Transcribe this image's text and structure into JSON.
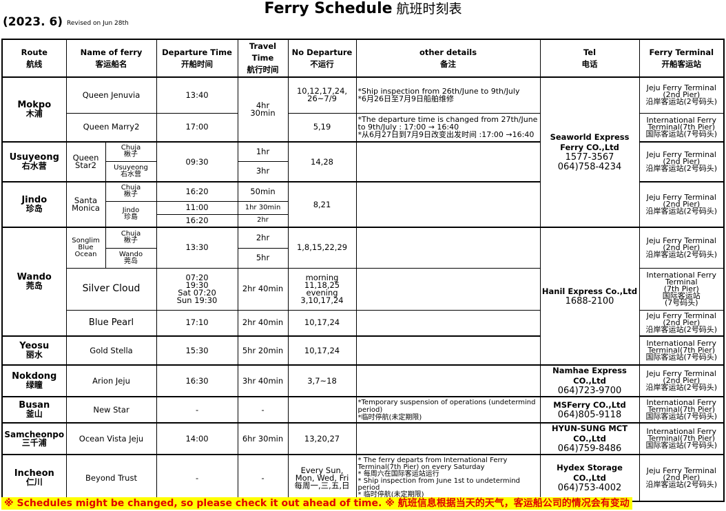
{
  "header": {
    "title": "Ferry Schedule",
    "title_cn": "航班时刻表",
    "year": "(2023. 6)",
    "revised": "Revised on Jun 28th"
  },
  "columns": [
    "Route\n航线",
    "Name of ferry\n客运船名",
    "Departure Time\n开船时间",
    "Travel\nTime\n航行时间",
    "No Departure\n不运行",
    "other details\n备注",
    "Tel\n电话",
    "Ferry Terminal\n开船客运站"
  ],
  "terminals": {
    "jeju": "Jeju Ferry Terminal\n(2nd Pier)\n沿岸客运站(2号码头)",
    "intl": "International Ferry\nTerminal(7th Pier)\n国际客运站(7号码头)",
    "intl2": "International Ferry\nTerminal\n(7th Pier)\n国际客运站\n(7号码头)"
  },
  "companies": {
    "seaworld": {
      "name": "Seaworld Express\nFerry CO.,Ltd",
      "phone": "1577-3567\n064)758-4234"
    },
    "hanil": {
      "name": "Hanil Express Co.,Ltd",
      "phone": "1688-2100"
    },
    "namhae": {
      "name": "Namhae Express CO.,Ltd",
      "phone": "064)723-9700"
    },
    "msferry": {
      "name": "MSFerry CO.,Ltd",
      "phone": "064)805-9118"
    },
    "hyunsung": {
      "name": "HYUN-SUNG MCT CO.,Ltd",
      "phone": "064)759-8486"
    },
    "hydex": {
      "name": "Hydex Storage CO.,Ltd",
      "phone": "064)753-4002"
    }
  },
  "routes": {
    "mokpo": {
      "en": "Mokpo",
      "cn": "木浦",
      "ferries": [
        {
          "name": "Queen Jenuvia",
          "dep": "13:40",
          "travel": "4hr\n30min",
          "nodep": "10,12,17,24,\n26~7/9",
          "note": "*Ship inspection from 26th/June to 9th/July\n*6月26日至7月9日船舶维修"
        },
        {
          "name": "Queen Marry2",
          "dep": "17:00",
          "nodep": "5,19",
          "note": "*The departure time is changed from 27th/June to 9th/July : 17:00 → 16:40\n*从6月27日到7月9日改变出发时间 :17:00 →16:40"
        }
      ]
    },
    "usuyeong": {
      "en": "Usuyeong",
      "cn": "右水营",
      "ferry": "Queen\nStar2",
      "dest": [
        "Chuja\n楸子",
        "Usuyeong\n右水营"
      ],
      "dep": "09:30",
      "travel": [
        "1hr",
        "3hr"
      ],
      "nodep": "14,28"
    },
    "jindo": {
      "en": "Jindo",
      "cn": "珍岛",
      "ferry": "Santa\nMonica",
      "dest": [
        "Chuja\n楸子",
        "Jindo\n珍島"
      ],
      "dep": [
        "16:20",
        "11:00",
        "16:20"
      ],
      "travel": [
        "50min",
        "1hr 30min",
        "2hr"
      ],
      "nodep": "8,21"
    },
    "wando": {
      "en": "Wando",
      "cn": "莞岛",
      "ferry": "Songlim\nBlue\nOcean",
      "dest": [
        "Chuja\n楸子",
        "Wando\n莞岛"
      ],
      "dep": "13:30",
      "travel": [
        "2hr",
        "5hr"
      ],
      "nodep": "1,8,15,22,29",
      "silver": {
        "name": "Silver Cloud",
        "dep": "07:20\n19:30\nSat 07:20\nSun 19:30",
        "travel": "2hr 40min",
        "nodep": "morning\n11,18,25\nevening\n3,10,17,24"
      },
      "blue": {
        "name": "Blue Pearl",
        "dep": "17:10",
        "travel": "2hr 40min",
        "nodep": "10,17,24"
      }
    },
    "yeosu": {
      "en": "Yeosu",
      "cn": "丽水",
      "ferry": "Gold Stella",
      "dep": "15:30",
      "travel": "5hr 20min",
      "nodep": "10,17,24"
    },
    "nokdong": {
      "en": "Nokdong",
      "cn": "绿瞳",
      "ferry": "Arion Jeju",
      "dep": "16:30",
      "travel": "3hr 40min",
      "nodep": "3,7~18"
    },
    "busan": {
      "en": "Busan",
      "cn": "釜山",
      "ferry": "New Star",
      "dep": "-",
      "travel": "-",
      "note": "*Temporary suspension of operations (undetermind period)\n*临时停航(未定期限)"
    },
    "samcheonpo": {
      "en": "Samcheonpo",
      "cn": "三千浦",
      "ferry": "Ocean Vista Jeju",
      "dep": "14:00",
      "travel": "6hr 30min",
      "nodep": "13,20,27"
    },
    "incheon": {
      "en": "Incheon",
      "cn": "仁川",
      "ferry": "Beyond Trust",
      "dep": "-",
      "travel": "-",
      "nodep": "Every Sun,\nMon, Wed, Fri\n每周一,三,五,日",
      "note": "* The ferry departs from International Ferry\n  Terminal(7th Pier) on every Saturday\n* 每周六在国际客运站运行\n* Ship inspection from June 1st to undetermind period\n* 临时停航(未定期限)"
    }
  },
  "footer": "※ Schedules might be changed, so please check it out ahead of time.  ※ 航班信息根据当天的天气，客运船公司的情况会有变动",
  "colors": {
    "footer_text": "#e00000",
    "footer_bg": "#ffff00"
  }
}
